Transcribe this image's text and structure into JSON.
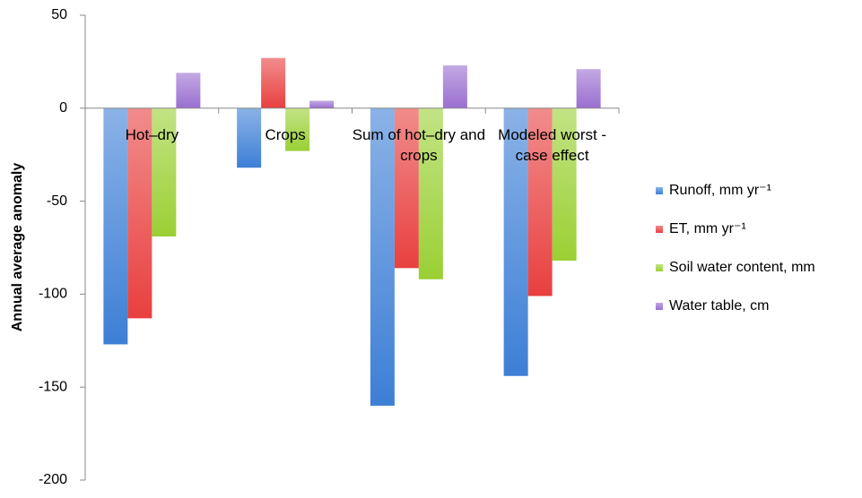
{
  "chart_data": {
    "type": "bar",
    "y_label": "Annual average anomaly",
    "categories": [
      "Hot–dry",
      "Crops",
      "Sum of hot–dry and crops",
      "Modeled worst - case effect"
    ],
    "series": [
      {
        "name": "Runoff, mm yr⁻¹",
        "color": "#3d7fd6",
        "values": [
          -127,
          -32,
          -160,
          -144
        ]
      },
      {
        "name": "ET, mm yr⁻¹",
        "color": "#e8403f",
        "values": [
          -113,
          27,
          -86,
          -101
        ]
      },
      {
        "name": "Soil water content, mm",
        "color": "#9ad034",
        "values": [
          -69,
          -23,
          -92,
          -82
        ]
      },
      {
        "name": "Water table, cm",
        "color": "#9a6fd0",
        "values": [
          19,
          4,
          23,
          21
        ]
      }
    ],
    "ylim": [
      -200,
      50
    ],
    "yticks": [
      -200,
      -150,
      -100,
      -50,
      0,
      50
    ],
    "legend": "right"
  }
}
